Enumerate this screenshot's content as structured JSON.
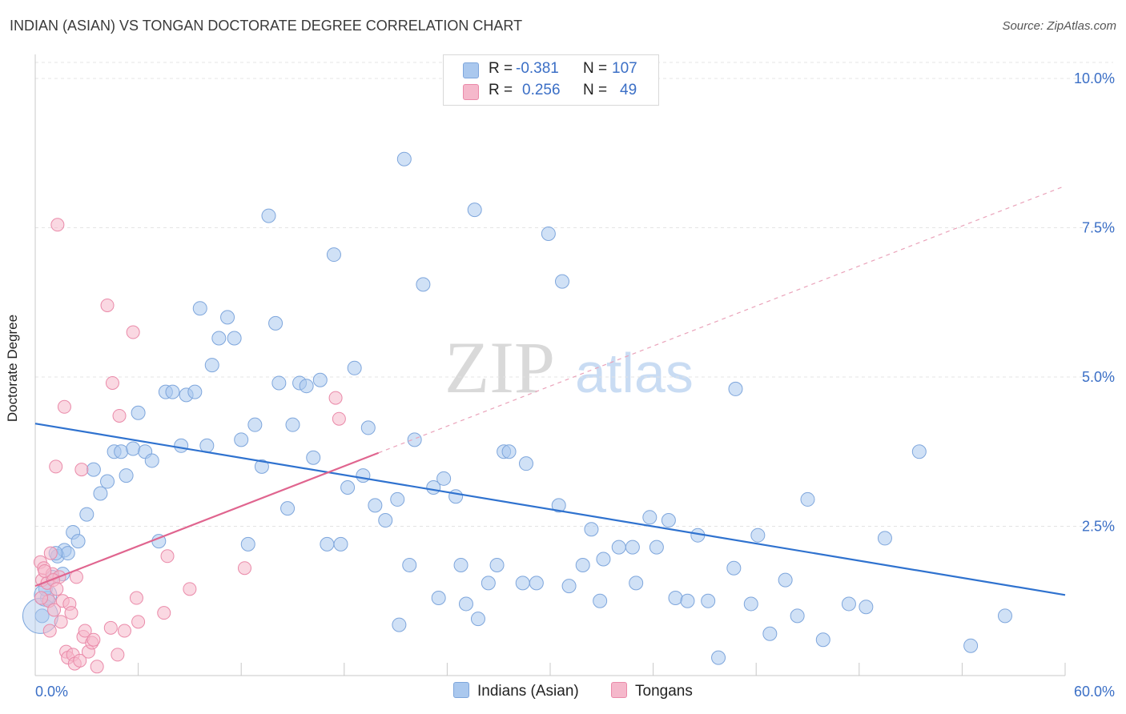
{
  "title": "INDIAN (ASIAN) VS TONGAN DOCTORATE DEGREE CORRELATION CHART",
  "source": "Source: ZipAtlas.com",
  "watermark": {
    "zip": "ZIP",
    "atlas": "atlas"
  },
  "legend": {
    "r_label": "R =",
    "n_label": "N =",
    "rows": [
      {
        "r": "-0.381",
        "n": "107"
      },
      {
        "r": "0.256",
        "n": "49"
      }
    ]
  },
  "colors": {
    "blue_fill": "#aac8ee",
    "blue_stroke": "#7ea6dc",
    "blue_line": "#2f72cf",
    "pink_fill": "#f5b8cb",
    "pink_stroke": "#ea8aa9",
    "pink_line": "#e0658f",
    "tick_text": "#3b6fc6",
    "grid": "#e4e4e4"
  },
  "chart_data": {
    "type": "scatter",
    "title": "INDIAN (ASIAN) VS TONGAN DOCTORATE DEGREE CORRELATION CHART",
    "xlabel": "",
    "ylabel": "Doctorate Degree",
    "xlim": [
      0,
      60
    ],
    "ylim": [
      0,
      10.5
    ],
    "x_tick_labels": [
      "0.0%",
      "60.0%"
    ],
    "y_ticks": [
      2.5,
      5.0,
      7.5,
      10.0
    ],
    "y_tick_labels": [
      "2.5%",
      "5.0%",
      "7.5%",
      "10.0%"
    ],
    "grid": true,
    "series": [
      {
        "name": "Indians (Asian)",
        "color": "#aac8ee",
        "trend": {
          "x": [
            0,
            60
          ],
          "y": [
            4.22,
            1.35
          ],
          "style": "solid"
        },
        "points": [
          [
            0.4,
            1.0
          ],
          [
            0.7,
            1.3
          ],
          [
            1.3,
            2.0
          ],
          [
            1.6,
            1.7
          ],
          [
            1.7,
            2.1
          ],
          [
            1.9,
            2.05
          ],
          [
            2.2,
            2.4
          ],
          [
            2.5,
            2.25
          ],
          [
            3.0,
            2.7
          ],
          [
            3.4,
            3.45
          ],
          [
            3.8,
            3.05
          ],
          [
            4.2,
            3.25
          ],
          [
            4.6,
            3.75
          ],
          [
            5.0,
            3.75
          ],
          [
            5.3,
            3.35
          ],
          [
            5.7,
            3.8
          ],
          [
            6.0,
            4.4
          ],
          [
            6.4,
            3.75
          ],
          [
            6.8,
            3.6
          ],
          [
            7.2,
            2.25
          ],
          [
            7.6,
            4.75
          ],
          [
            8.0,
            4.75
          ],
          [
            8.5,
            3.85
          ],
          [
            8.8,
            4.7
          ],
          [
            9.3,
            4.75
          ],
          [
            9.6,
            6.15
          ],
          [
            10.0,
            3.85
          ],
          [
            10.3,
            5.2
          ],
          [
            10.7,
            5.65
          ],
          [
            11.2,
            6.0
          ],
          [
            11.6,
            5.65
          ],
          [
            12.0,
            3.95
          ],
          [
            12.4,
            2.2
          ],
          [
            12.8,
            4.2
          ],
          [
            13.2,
            3.5
          ],
          [
            13.6,
            7.7
          ],
          [
            14.0,
            5.9
          ],
          [
            14.2,
            4.9
          ],
          [
            14.7,
            2.8
          ],
          [
            15.0,
            4.2
          ],
          [
            15.4,
            4.9
          ],
          [
            15.8,
            4.85
          ],
          [
            16.2,
            3.65
          ],
          [
            16.6,
            4.95
          ],
          [
            17.0,
            2.2
          ],
          [
            17.4,
            7.05
          ],
          [
            17.8,
            2.2
          ],
          [
            18.2,
            3.15
          ],
          [
            18.6,
            5.15
          ],
          [
            19.1,
            3.35
          ],
          [
            19.4,
            4.15
          ],
          [
            19.8,
            2.85
          ],
          [
            20.4,
            2.6
          ],
          [
            21.1,
            2.95
          ],
          [
            21.2,
            0.85
          ],
          [
            21.5,
            8.65
          ],
          [
            21.8,
            1.85
          ],
          [
            22.1,
            3.95
          ],
          [
            22.6,
            6.55
          ],
          [
            23.2,
            3.15
          ],
          [
            23.5,
            1.3
          ],
          [
            23.8,
            3.3
          ],
          [
            24.5,
            3.0
          ],
          [
            24.8,
            1.85
          ],
          [
            25.1,
            1.2
          ],
          [
            25.6,
            7.8
          ],
          [
            25.8,
            0.95
          ],
          [
            26.4,
            1.55
          ],
          [
            26.9,
            1.85
          ],
          [
            27.3,
            3.75
          ],
          [
            27.6,
            3.75
          ],
          [
            28.4,
            1.55
          ],
          [
            28.6,
            3.55
          ],
          [
            29.2,
            1.55
          ],
          [
            29.9,
            7.4
          ],
          [
            30.5,
            2.85
          ],
          [
            30.7,
            6.6
          ],
          [
            31.1,
            1.5
          ],
          [
            31.9,
            1.85
          ],
          [
            32.4,
            2.45
          ],
          [
            32.9,
            1.25
          ],
          [
            33.1,
            1.95
          ],
          [
            34.0,
            2.15
          ],
          [
            34.8,
            2.15
          ],
          [
            35.0,
            1.55
          ],
          [
            35.8,
            2.65
          ],
          [
            36.2,
            2.15
          ],
          [
            36.9,
            2.6
          ],
          [
            37.3,
            1.3
          ],
          [
            38.0,
            1.25
          ],
          [
            38.6,
            2.35
          ],
          [
            39.2,
            1.25
          ],
          [
            39.8,
            0.3
          ],
          [
            40.7,
            1.8
          ],
          [
            40.8,
            4.8
          ],
          [
            41.7,
            1.2
          ],
          [
            42.1,
            2.35
          ],
          [
            42.8,
            0.7
          ],
          [
            43.7,
            1.6
          ],
          [
            44.4,
            1.0
          ],
          [
            45.0,
            2.95
          ],
          [
            45.9,
            0.6
          ],
          [
            47.4,
            1.2
          ],
          [
            48.4,
            1.15
          ],
          [
            49.5,
            2.3
          ],
          [
            51.5,
            3.75
          ],
          [
            54.5,
            0.5
          ],
          [
            56.5,
            1.0
          ],
          [
            1.0,
            1.65
          ],
          [
            0.6,
            1.45
          ],
          [
            1.2,
            2.05
          ]
        ]
      },
      {
        "name": "Tongans",
        "color": "#f5b8cb",
        "trend": {
          "x": [
            0,
            20
          ],
          "y": [
            1.5,
            3.73
          ],
          "style": "solid",
          "extended": {
            "x": [
              20,
              60
            ],
            "y": [
              3.73,
              8.2
            ],
            "style": "dashed"
          }
        },
        "points": [
          [
            0.3,
            1.9
          ],
          [
            0.4,
            1.6
          ],
          [
            0.5,
            1.8
          ],
          [
            0.7,
            1.55
          ],
          [
            0.8,
            1.25
          ],
          [
            0.9,
            2.05
          ],
          [
            1.0,
            1.7
          ],
          [
            1.1,
            1.1
          ],
          [
            1.2,
            3.5
          ],
          [
            1.3,
            7.55
          ],
          [
            1.4,
            1.65
          ],
          [
            1.5,
            0.9
          ],
          [
            1.6,
            1.25
          ],
          [
            1.7,
            4.5
          ],
          [
            1.8,
            0.4
          ],
          [
            1.9,
            0.3
          ],
          [
            2.0,
            1.2
          ],
          [
            2.1,
            1.05
          ],
          [
            2.2,
            0.35
          ],
          [
            2.3,
            0.2
          ],
          [
            2.4,
            1.65
          ],
          [
            2.6,
            0.25
          ],
          [
            2.7,
            3.45
          ],
          [
            2.8,
            0.65
          ],
          [
            2.9,
            0.75
          ],
          [
            3.1,
            0.4
          ],
          [
            3.3,
            0.55
          ],
          [
            3.4,
            0.6
          ],
          [
            3.6,
            0.15
          ],
          [
            4.2,
            6.2
          ],
          [
            4.4,
            0.8
          ],
          [
            4.5,
            4.9
          ],
          [
            4.8,
            0.35
          ],
          [
            4.9,
            4.35
          ],
          [
            5.2,
            0.75
          ],
          [
            5.7,
            5.75
          ],
          [
            5.9,
            1.3
          ],
          [
            6.0,
            0.9
          ],
          [
            7.5,
            1.05
          ],
          [
            7.7,
            2.0
          ],
          [
            9.0,
            1.45
          ],
          [
            12.2,
            1.8
          ],
          [
            17.5,
            4.65
          ],
          [
            17.7,
            4.3
          ],
          [
            0.35,
            1.3
          ],
          [
            0.55,
            1.75
          ],
          [
            1.05,
            1.6
          ],
          [
            0.85,
            0.75
          ],
          [
            1.25,
            1.45
          ]
        ]
      }
    ]
  },
  "bottom_legend": [
    "Indians (Asian)",
    "Tongans"
  ]
}
